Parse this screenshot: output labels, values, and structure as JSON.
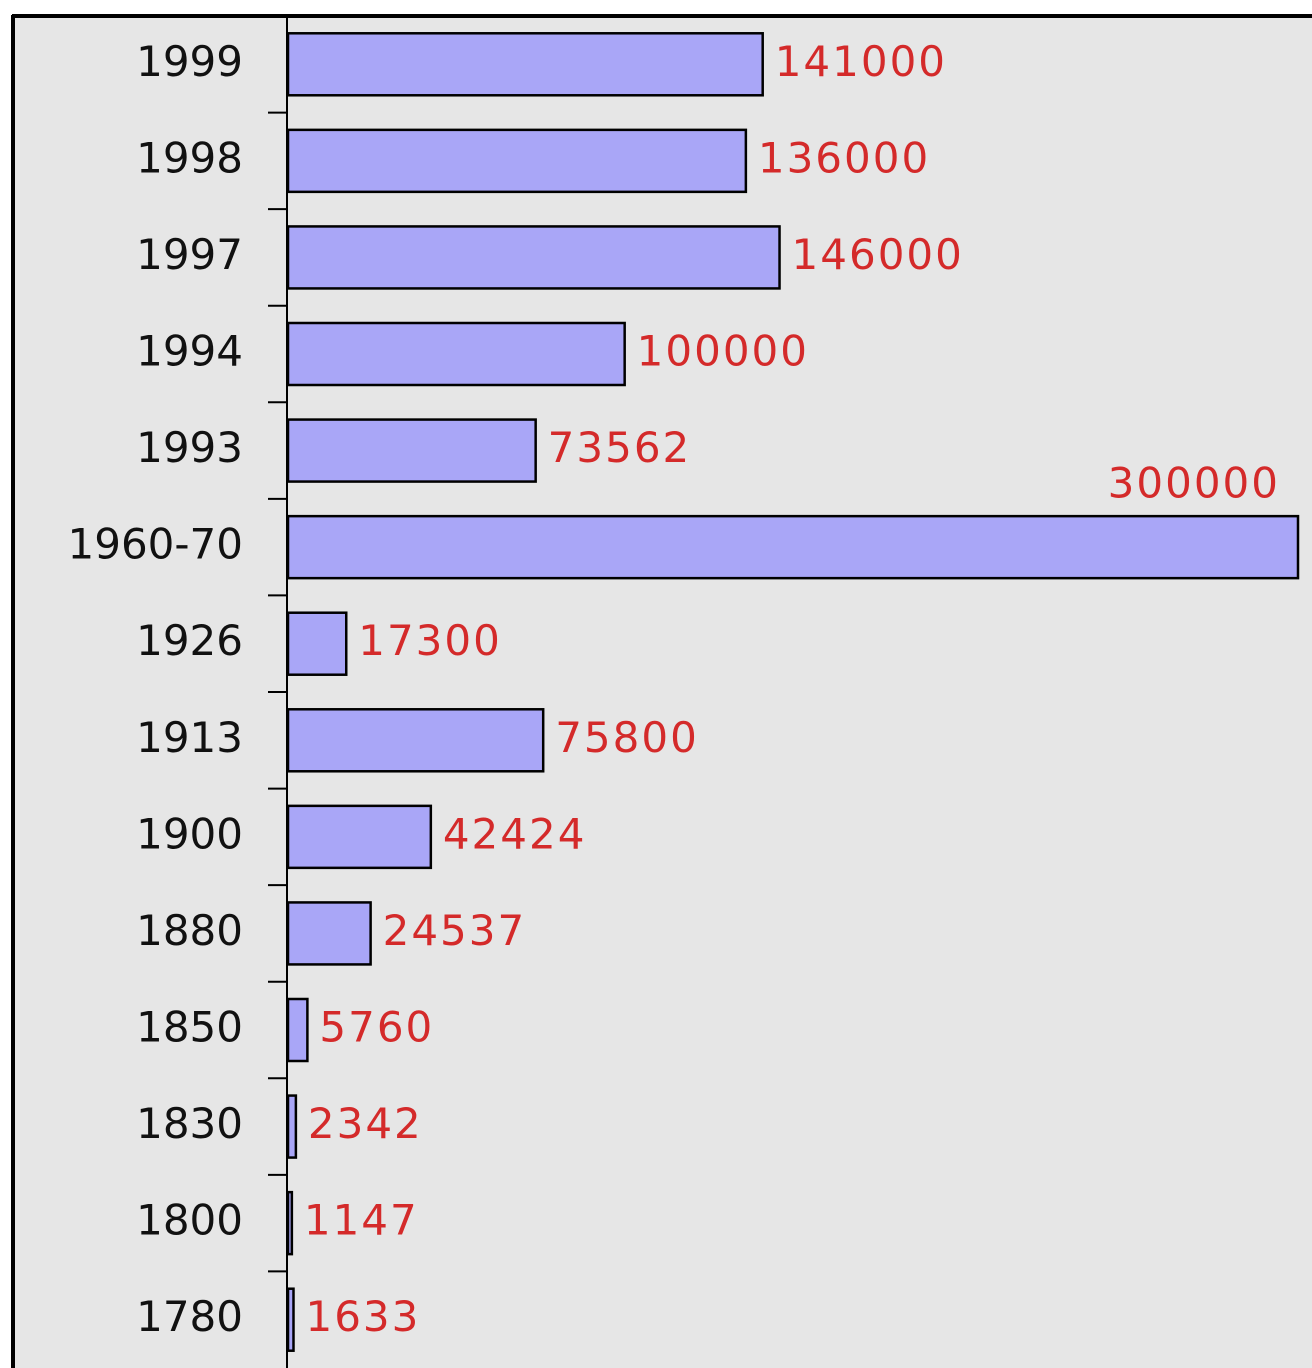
{
  "chart_data": {
    "type": "bar",
    "orientation": "horizontal",
    "categories": [
      "1999",
      "1998",
      "1997",
      "1994",
      "1993",
      "1960-70",
      "1926",
      "1913",
      "1900",
      "1880",
      "1850",
      "1830",
      "1800",
      "1780"
    ],
    "values": [
      141000,
      136000,
      146000,
      100000,
      73562,
      300000,
      17300,
      75800,
      42424,
      24537,
      5760,
      2342,
      1147,
      1633
    ],
    "color": "#a9a6f7"
  }
}
